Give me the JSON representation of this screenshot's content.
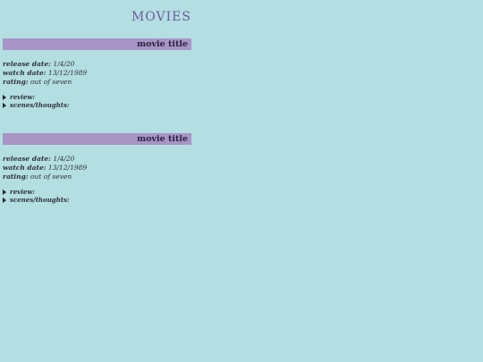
{
  "header": {
    "title": "MOVIES"
  },
  "entries": [
    {
      "title": "movie title",
      "release_label": "release date:",
      "release_value": "1/4/20",
      "watch_label": "watch date:",
      "watch_value": "13/12/1989",
      "rating_label": "rating:",
      "rating_value": "out of seven",
      "review_label": "review:",
      "scenes_label": "scenes/thoughts:"
    },
    {
      "title": "movie title",
      "release_label": "release date:",
      "release_value": "1/4/20",
      "watch_label": "watch date:",
      "watch_value": "13/12/1989",
      "rating_label": "rating:",
      "rating_value": "out of seven",
      "review_label": "review:",
      "scenes_label": "scenes/thoughts:"
    }
  ],
  "colors": {
    "background": "#b3dee2",
    "title_bar": "#a994c6",
    "heading": "#6c5a9a"
  },
  "icons": {
    "disclosure": "triangle-right-icon"
  }
}
